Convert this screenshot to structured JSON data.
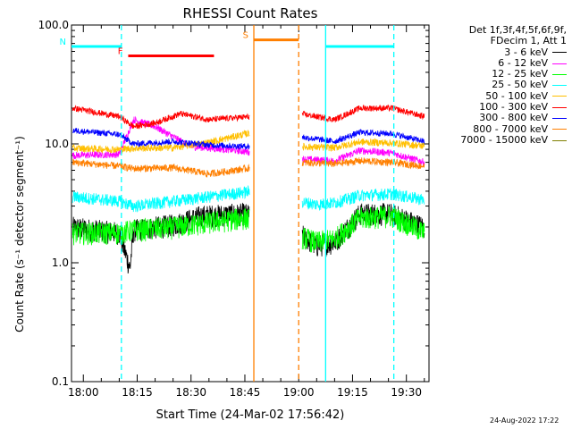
{
  "chart_data": {
    "type": "line",
    "title": "RHESSI Count Rates",
    "xlabel": "Start Time (24-Mar-02 17:56:42)",
    "ylabel": "Count Rate (s⁻¹ detector segment⁻¹)",
    "yscale": "log",
    "ylim": [
      0.1,
      100.0
    ],
    "xlim_minutes": [
      -3.3,
      38.4
    ],
    "x_ticks": [
      "18:00",
      "18:15",
      "18:30",
      "18:45",
      "19:00",
      "19:15",
      "19:30"
    ],
    "y_ticks": [
      "0.1",
      "1.0",
      "10.0",
      "100.0"
    ],
    "legend_header": [
      "Det 1f,3f,4f,5f,6f,9f,",
      "FDecim 1, Att 1"
    ],
    "legend_position": "outside-right",
    "data_gap_minutes": [
      47.5,
      60.0
    ],
    "series": [
      {
        "name": "3 - 6 keV",
        "color": "#000000",
        "points": [
          [
            -3,
            2.0
          ],
          [
            10,
            1.8
          ],
          [
            13,
            0.9
          ],
          [
            14,
            1.9
          ],
          [
            25,
            2.1
          ],
          [
            33,
            2.5
          ],
          [
            45,
            2.6
          ],
          [
            60,
            1.8
          ],
          [
            65,
            1.4
          ],
          [
            70,
            1.5
          ],
          [
            77,
            2.6
          ],
          [
            86,
            2.6
          ],
          [
            95,
            2.0
          ]
        ]
      },
      {
        "name": "6 - 12 keV",
        "color": "#ff00ff",
        "points": [
          [
            -3,
            8.0
          ],
          [
            10,
            8.2
          ],
          [
            14,
            16.0
          ],
          [
            20,
            14.0
          ],
          [
            25,
            11.5
          ],
          [
            30,
            9.5
          ],
          [
            40,
            9.0
          ],
          [
            47,
            8.5
          ],
          [
            60,
            7.5
          ],
          [
            70,
            7.2
          ],
          [
            77,
            8.8
          ],
          [
            86,
            8.4
          ],
          [
            95,
            7.0
          ]
        ]
      },
      {
        "name": "12 - 25 keV",
        "color": "#00ff00",
        "points": [
          [
            -3,
            1.8
          ],
          [
            10,
            1.8
          ],
          [
            14,
            1.9
          ],
          [
            25,
            2.0
          ],
          [
            35,
            2.2
          ],
          [
            45,
            2.4
          ],
          [
            60,
            1.7
          ],
          [
            65,
            1.5
          ],
          [
            70,
            1.6
          ],
          [
            77,
            2.4
          ],
          [
            86,
            2.5
          ],
          [
            95,
            1.8
          ]
        ]
      },
      {
        "name": "25 - 50 keV",
        "color": "#00ffff",
        "points": [
          [
            -3,
            3.6
          ],
          [
            10,
            3.3
          ],
          [
            14,
            3.0
          ],
          [
            25,
            3.3
          ],
          [
            35,
            3.6
          ],
          [
            47,
            4.0
          ],
          [
            60,
            3.3
          ],
          [
            65,
            3.1
          ],
          [
            70,
            3.2
          ],
          [
            77,
            3.7
          ],
          [
            86,
            3.8
          ],
          [
            95,
            3.4
          ]
        ]
      },
      {
        "name": "50 - 100 keV",
        "color": "#ffbf00",
        "points": [
          [
            -3,
            9.2
          ],
          [
            10,
            9.0
          ],
          [
            14,
            9.2
          ],
          [
            25,
            9.3
          ],
          [
            35,
            10.3
          ],
          [
            47,
            12.5
          ],
          [
            60,
            9.5
          ],
          [
            70,
            9.3
          ],
          [
            77,
            10.4
          ],
          [
            86,
            10.2
          ],
          [
            95,
            9.6
          ]
        ]
      },
      {
        "name": "100 - 300 keV",
        "color": "#ff0000",
        "points": [
          [
            -3,
            20.0
          ],
          [
            10,
            17.0
          ],
          [
            14,
            14.0
          ],
          [
            20,
            15.0
          ],
          [
            27,
            18.0
          ],
          [
            35,
            16.0
          ],
          [
            47,
            17.0
          ],
          [
            60,
            18.0
          ],
          [
            70,
            16.0
          ],
          [
            77,
            20.0
          ],
          [
            86,
            20.0
          ],
          [
            95,
            17.0
          ]
        ]
      },
      {
        "name": "300 - 800 keV",
        "color": "#0000ff",
        "points": [
          [
            -3,
            13.0
          ],
          [
            10,
            12.0
          ],
          [
            14,
            10.0
          ],
          [
            25,
            10.5
          ],
          [
            35,
            9.8
          ],
          [
            47,
            9.5
          ],
          [
            60,
            11.5
          ],
          [
            70,
            10.5
          ],
          [
            77,
            12.5
          ],
          [
            86,
            12.2
          ],
          [
            95,
            10.5
          ]
        ]
      },
      {
        "name": "800 - 7000 keV",
        "color": "#ff7f00",
        "points": [
          [
            -3,
            7.0
          ],
          [
            10,
            6.5
          ],
          [
            14,
            6.2
          ],
          [
            25,
            6.3
          ],
          [
            35,
            5.6
          ],
          [
            47,
            6.3
          ],
          [
            60,
            7.0
          ],
          [
            70,
            6.8
          ],
          [
            77,
            7.2
          ],
          [
            86,
            7.0
          ],
          [
            95,
            6.5
          ]
        ]
      },
      {
        "name": "7000 - 15000 keV",
        "color": "#7f7f00",
        "points": []
      }
    ],
    "annotations": [
      {
        "label": "N",
        "color": "#00ffff",
        "bars_minutes": [
          [
            -3.3,
            10.6
          ],
          [
            67.5,
            86.5
          ]
        ],
        "y": 66.0
      },
      {
        "label": "F",
        "color": "#ff0000",
        "bars_minutes": [
          [
            12.5,
            36.4
          ]
        ],
        "y": 55.0
      },
      {
        "label": "S",
        "color": "#ff7f00",
        "bars_minutes": [
          [
            47.5,
            60.0
          ]
        ],
        "y": 75.0
      }
    ],
    "vertical_markers_minutes": [
      {
        "x": 10.6,
        "color": "#00ffff",
        "dash": true
      },
      {
        "x": 47.5,
        "color": "#ff7f00",
        "dash": false
      },
      {
        "x": 60.0,
        "color": "#ff7f00",
        "dash": true
      },
      {
        "x": 67.5,
        "color": "#00ffff",
        "dash": false
      },
      {
        "x": 86.5,
        "color": "#00ffff",
        "dash": true
      }
    ]
  },
  "footer": {
    "timestamp": "24-Aug-2022 17:22"
  }
}
